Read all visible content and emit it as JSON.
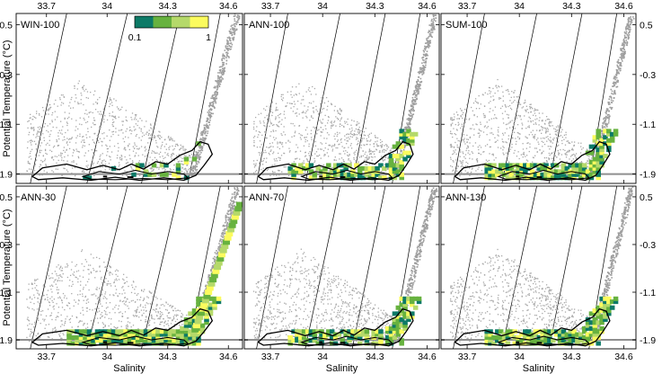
{
  "chart_data": {
    "type": "scatter",
    "description_type": "T-S diagram panels with water-mass density scatter, colored occurrence frequency and contour outlines",
    "xlabel": "Salinity",
    "ylabel": "Potential Temperature (°C)",
    "x_ticks": [
      33.7,
      34,
      34.3,
      34.6
    ],
    "x_tick_labels": [
      "33.7",
      "34",
      "34.3",
      "34.6"
    ],
    "y_ticks": [
      0.5,
      -0.3,
      -1.1,
      -1.9
    ],
    "y_tick_labels": [
      "0.5",
      "-0.3",
      "-1.1",
      "-1.9"
    ],
    "xlim": [
      33.55,
      34.67
    ],
    "ylim": [
      -2.05,
      0.68
    ],
    "freezing_line_temp": -1.9,
    "colorbar": {
      "labels": [
        "0.1",
        "1"
      ],
      "colors": [
        "#0d7a67",
        "#67b23f",
        "#b5d96a",
        "#fbfb5e"
      ]
    },
    "panels": [
      {
        "label": "WIN-100",
        "frequency_cells": 0.25
      },
      {
        "label": "ANN-100",
        "frequency_cells": 0.6
      },
      {
        "label": "SUM-100",
        "frequency_cells": 0.9
      },
      {
        "label": "ANN-30",
        "frequency_cells": 1.0
      },
      {
        "label": "ANN-70",
        "frequency_cells": 0.75
      },
      {
        "label": "ANN-130",
        "frequency_cells": 0.8
      }
    ]
  }
}
